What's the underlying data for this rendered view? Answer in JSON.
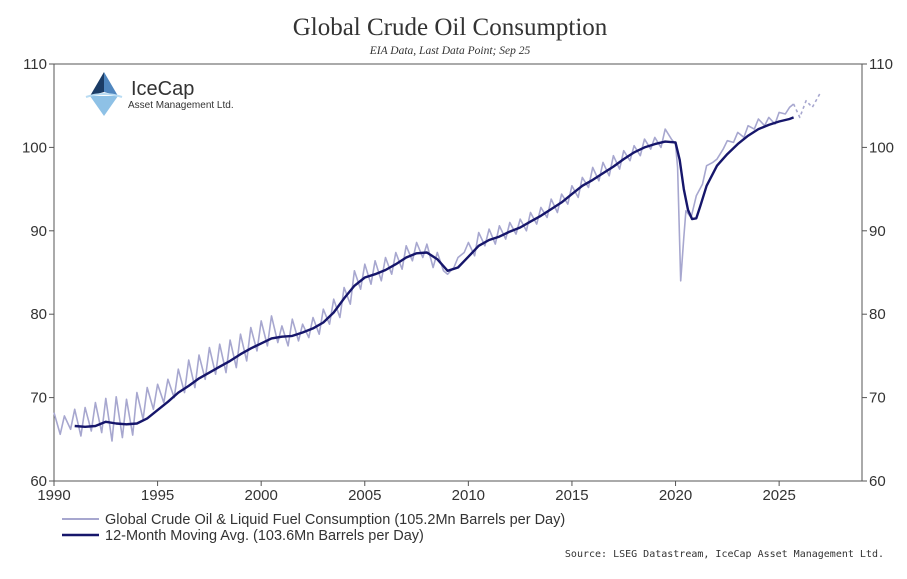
{
  "chart_data": {
    "type": "line",
    "title": "Global Crude Oil Consumption",
    "subtitle": "EIA Data, Last Data Point; Sep 25",
    "xlim": [
      1990,
      2029
    ],
    "ylim": [
      60,
      110
    ],
    "x_ticks": [
      "1990",
      "1995",
      "2000",
      "2005",
      "2010",
      "2015",
      "2020",
      "2025"
    ],
    "y_ticks": [
      "60",
      "70",
      "80",
      "90",
      "100",
      "110"
    ],
    "grid": false,
    "legend_position": "bottom-left",
    "series": [
      {
        "name": "Global Crude Oil & Liquid Fuel Consumption (105.2Mn Barrels per Day)",
        "color": "#a7a7cf",
        "style": "solid",
        "x": [
          1990.0,
          1990.3,
          1990.5,
          1990.8,
          1991.0,
          1991.3,
          1991.5,
          1991.8,
          1992.0,
          1992.3,
          1992.5,
          1992.8,
          1993.0,
          1993.3,
          1993.5,
          1993.8,
          1994.0,
          1994.3,
          1994.5,
          1994.8,
          1995.0,
          1995.3,
          1995.5,
          1995.8,
          1996.0,
          1996.3,
          1996.5,
          1996.8,
          1997.0,
          1997.3,
          1997.5,
          1997.8,
          1998.0,
          1998.3,
          1998.5,
          1998.8,
          1999.0,
          1999.3,
          1999.5,
          1999.8,
          2000.0,
          2000.3,
          2000.5,
          2000.8,
          2001.0,
          2001.3,
          2001.5,
          2001.8,
          2002.0,
          2002.3,
          2002.5,
          2002.8,
          2003.0,
          2003.3,
          2003.5,
          2003.8,
          2004.0,
          2004.3,
          2004.5,
          2004.8,
          2005.0,
          2005.3,
          2005.5,
          2005.8,
          2006.0,
          2006.3,
          2006.5,
          2006.8,
          2007.0,
          2007.3,
          2007.5,
          2007.8,
          2008.0,
          2008.3,
          2008.5,
          2008.8,
          2009.0,
          2009.3,
          2009.5,
          2009.8,
          2010.0,
          2010.3,
          2010.5,
          2010.8,
          2011.0,
          2011.3,
          2011.5,
          2011.8,
          2012.0,
          2012.3,
          2012.5,
          2012.8,
          2013.0,
          2013.3,
          2013.5,
          2013.8,
          2014.0,
          2014.3,
          2014.5,
          2014.8,
          2015.0,
          2015.3,
          2015.5,
          2015.8,
          2016.0,
          2016.3,
          2016.5,
          2016.8,
          2017.0,
          2017.3,
          2017.5,
          2017.8,
          2018.0,
          2018.3,
          2018.5,
          2018.8,
          2019.0,
          2019.3,
          2019.5,
          2019.8,
          2020.0,
          2020.1,
          2020.25,
          2020.4,
          2020.5,
          2020.75,
          2021.0,
          2021.3,
          2021.5,
          2021.8,
          2022.0,
          2022.3,
          2022.5,
          2022.8,
          2023.0,
          2023.3,
          2023.5,
          2023.8,
          2024.0,
          2024.3,
          2024.5,
          2024.8,
          2025.0,
          2025.3,
          2025.5,
          2025.7
        ],
        "values": [
          68.2,
          65.6,
          67.8,
          66.2,
          68.6,
          65.4,
          68.8,
          66.0,
          69.4,
          65.8,
          69.9,
          64.8,
          70.1,
          65.2,
          69.8,
          65.5,
          70.6,
          67.4,
          71.2,
          68.6,
          71.6,
          69.4,
          72.2,
          70.0,
          73.4,
          70.6,
          74.5,
          71.2,
          75.1,
          72.2,
          76.0,
          72.8,
          76.4,
          73.0,
          76.9,
          73.6,
          77.6,
          74.4,
          78.4,
          75.6,
          79.2,
          76.2,
          79.8,
          76.6,
          78.6,
          76.2,
          79.4,
          76.8,
          78.8,
          77.2,
          79.6,
          77.6,
          80.6,
          78.8,
          81.8,
          79.6,
          83.2,
          81.2,
          85.2,
          83.0,
          86.0,
          83.6,
          86.4,
          84.0,
          86.8,
          84.8,
          87.4,
          85.4,
          88.2,
          86.4,
          88.6,
          86.8,
          88.4,
          85.6,
          87.4,
          85.2,
          84.8,
          85.6,
          86.8,
          87.4,
          88.6,
          87.0,
          89.8,
          88.2,
          90.2,
          88.4,
          90.6,
          89.0,
          91.0,
          89.6,
          91.4,
          90.0,
          92.2,
          90.8,
          92.8,
          91.6,
          93.8,
          92.2,
          94.4,
          93.2,
          95.4,
          94.0,
          96.4,
          95.2,
          97.6,
          96.0,
          98.2,
          96.6,
          99.0,
          97.4,
          99.6,
          98.4,
          100.2,
          99.0,
          101.0,
          99.8,
          101.2,
          100.0,
          102.2,
          101.0,
          100.4,
          97.6,
          84.0,
          89.2,
          92.4,
          91.6,
          94.2,
          95.6,
          97.8,
          98.2,
          98.6,
          99.8,
          100.8,
          100.6,
          101.8,
          101.2,
          102.6,
          102.2,
          103.4,
          102.6,
          103.6,
          102.8,
          104.2,
          104.0,
          104.8,
          105.2
        ]
      },
      {
        "name": "",
        "color": "#a7a7cf",
        "style": "dashed",
        "x": [
          2025.7,
          2026.0,
          2026.3,
          2026.6,
          2027.0
        ],
        "values": [
          105.2,
          103.6,
          105.6,
          104.8,
          106.6
        ]
      },
      {
        "name": "12-Month Moving Avg. (103.6Mn Barrels per Day)",
        "color": "#16166b",
        "style": "solid",
        "x": [
          1991.0,
          1991.5,
          1992.0,
          1992.5,
          1993.0,
          1993.5,
          1994.0,
          1994.5,
          1995.0,
          1995.5,
          1996.0,
          1996.5,
          1997.0,
          1997.5,
          1998.0,
          1998.5,
          1999.0,
          1999.5,
          2000.0,
          2000.5,
          2001.0,
          2001.5,
          2002.0,
          2002.5,
          2003.0,
          2003.5,
          2004.0,
          2004.5,
          2005.0,
          2005.5,
          2006.0,
          2006.5,
          2007.0,
          2007.5,
          2008.0,
          2008.5,
          2009.0,
          2009.5,
          2010.0,
          2010.5,
          2011.0,
          2011.5,
          2012.0,
          2012.5,
          2013.0,
          2013.5,
          2014.0,
          2014.5,
          2015.0,
          2015.5,
          2016.0,
          2016.5,
          2017.0,
          2017.5,
          2018.0,
          2018.5,
          2019.0,
          2019.5,
          2020.0,
          2020.2,
          2020.4,
          2020.6,
          2020.8,
          2021.0,
          2021.2,
          2021.5,
          2022.0,
          2022.5,
          2023.0,
          2023.5,
          2024.0,
          2024.5,
          2025.0,
          2025.5,
          2025.7
        ],
        "values": [
          66.6,
          66.5,
          66.6,
          67.1,
          66.9,
          66.8,
          66.9,
          67.5,
          68.5,
          69.5,
          70.6,
          71.4,
          72.3,
          73.0,
          73.7,
          74.4,
          75.2,
          75.9,
          76.5,
          77.1,
          77.3,
          77.4,
          77.8,
          78.3,
          79.0,
          80.2,
          81.9,
          83.4,
          84.4,
          84.8,
          85.3,
          86.0,
          86.8,
          87.3,
          87.4,
          86.6,
          85.2,
          85.6,
          86.9,
          88.2,
          88.9,
          89.3,
          89.9,
          90.4,
          91.1,
          91.8,
          92.6,
          93.4,
          94.4,
          95.4,
          96.1,
          96.9,
          97.7,
          98.6,
          99.4,
          100.0,
          100.4,
          100.7,
          100.6,
          98.5,
          95.0,
          92.5,
          91.4,
          91.5,
          93.0,
          95.4,
          97.8,
          99.2,
          100.4,
          101.4,
          102.2,
          102.7,
          103.1,
          103.4,
          103.6
        ]
      }
    ],
    "legend": [
      "Global Crude Oil & Liquid Fuel Consumption (105.2Mn Barrels per Day)",
      "12-Month Moving Avg. (103.6Mn Barrels per Day)"
    ],
    "source": "Source: LSEG Datastream, IceCap Asset Management Ltd."
  },
  "logo": {
    "name": "IceCap",
    "tagline": "Asset Management Ltd.",
    "colors": [
      "#1b3c66",
      "#4f86bf",
      "#8ec1e6",
      "#b9dcf3"
    ]
  }
}
